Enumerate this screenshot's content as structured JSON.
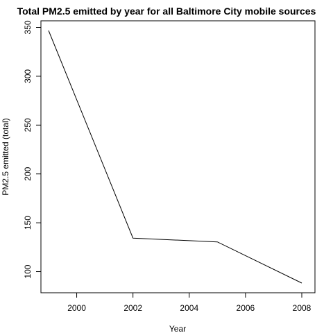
{
  "chart_data": {
    "type": "line",
    "title": "Total PM2.5 emitted by year for all Baltimore City mobile sources",
    "xlabel": "Year",
    "ylabel": "PM2.5 emitted (total)",
    "x": [
      1999,
      2002,
      2005,
      2008
    ],
    "series": [
      {
        "values": [
          346.8,
          134.3,
          130.4,
          88.3
        ]
      }
    ],
    "xlim": [
      1999,
      2008
    ],
    "ylim": [
      88.3,
      346.8
    ],
    "xticks": [
      2000,
      2002,
      2004,
      2006,
      2008
    ],
    "yticks": [
      100,
      150,
      200,
      250,
      300,
      350
    ],
    "xtick_labels": [
      "2000",
      "2002",
      "2004",
      "2006",
      "2008"
    ],
    "ytick_labels": [
      "100",
      "150",
      "200",
      "250",
      "300",
      "350"
    ],
    "grid": false,
    "legend": "none",
    "line_color": "#000000"
  }
}
